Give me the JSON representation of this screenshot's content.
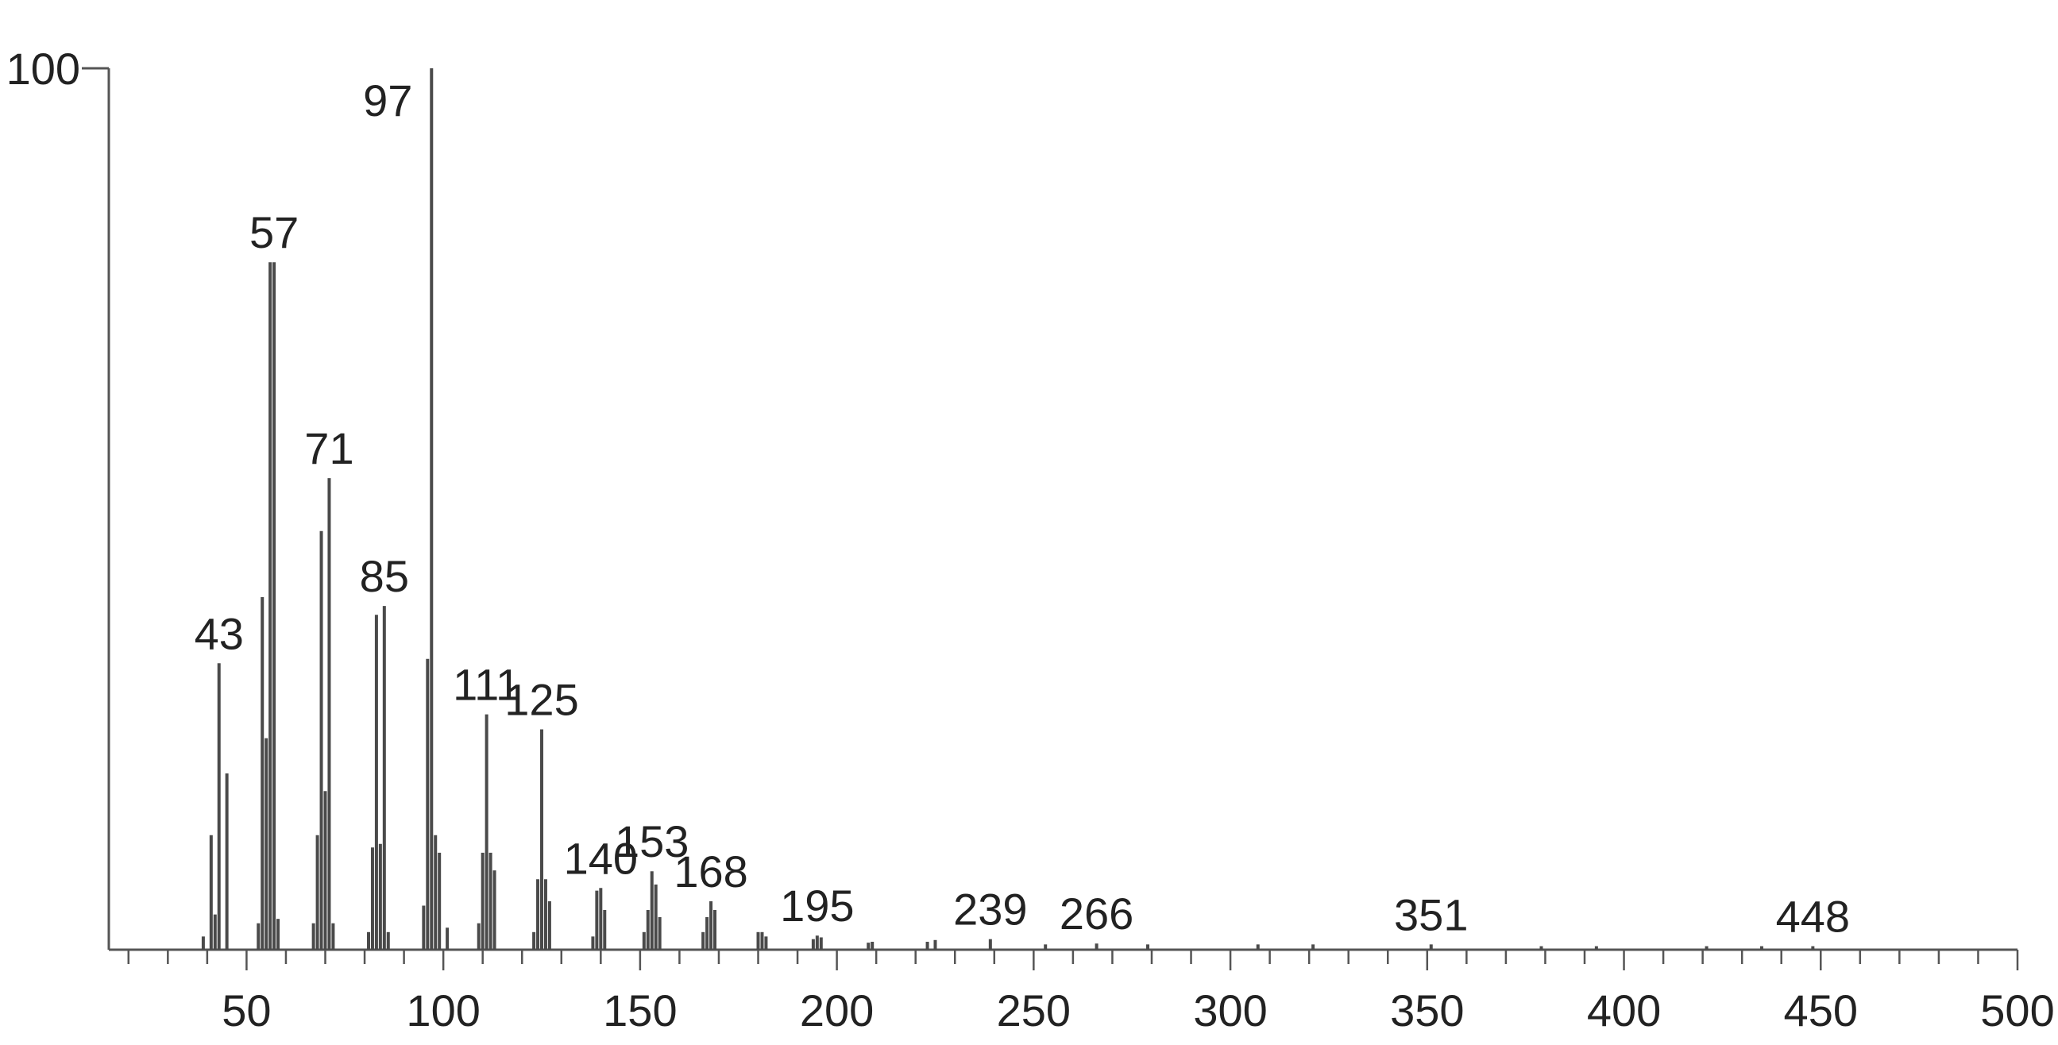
{
  "chart_data": {
    "type": "stick",
    "color": "#4a4a4a",
    "xlim": [
      15,
      500
    ],
    "xticks": [
      50,
      100,
      150,
      200,
      250,
      300,
      350,
      400,
      450,
      500
    ],
    "xminorticks": [
      20,
      30,
      40,
      60,
      70,
      80,
      90,
      110,
      120,
      130,
      140,
      160,
      170,
      180,
      190,
      210,
      220,
      230,
      240,
      260,
      270,
      280,
      290,
      310,
      320,
      330,
      340,
      360,
      370,
      380,
      390,
      410,
      420,
      430,
      440,
      460,
      470,
      480,
      490
    ],
    "ylim": [
      0,
      100
    ],
    "yticks": [
      100
    ],
    "x": [
      39,
      41,
      42,
      43,
      45,
      53,
      54,
      55,
      56,
      57,
      58,
      67,
      68,
      69,
      70,
      71,
      72,
      81,
      82,
      83,
      84,
      85,
      86,
      95,
      96,
      97,
      98,
      99,
      101,
      109,
      110,
      111,
      112,
      113,
      123,
      124,
      125,
      126,
      127,
      138,
      139,
      140,
      141,
      151,
      152,
      153,
      154,
      155,
      166,
      167,
      168,
      169,
      180,
      181,
      182,
      194,
      195,
      196,
      208,
      209,
      223,
      225,
      239,
      253,
      266,
      279,
      307,
      321,
      351,
      379,
      393,
      421,
      435,
      448
    ],
    "values": [
      1.5,
      13,
      4,
      32.5,
      20,
      3,
      40,
      24,
      78,
      78,
      3.5,
      3,
      13,
      47.5,
      18,
      53.5,
      3,
      2,
      11.6,
      38,
      12,
      39,
      2,
      5,
      33,
      100,
      13,
      11,
      2.5,
      3,
      11,
      26.7,
      11,
      9,
      2,
      8,
      25,
      8,
      5.5,
      1.5,
      6.7,
      7,
      4.5,
      2,
      4.5,
      8.9,
      7.4,
      3.7,
      2,
      3.7,
      5.5,
      4.5,
      2,
      2,
      1.5,
      1.2,
      1.6,
      1.4,
      0.8,
      0.9,
      0.9,
      1.1,
      1.2,
      0.6,
      0.7,
      0.6,
      0.6,
      0.6,
      0.6,
      0.4,
      0.4,
      0.4,
      0.4,
      0.4
    ],
    "annotations": [
      43,
      57,
      71,
      85,
      97,
      111,
      125,
      140,
      153,
      168,
      195,
      239,
      266,
      351,
      448
    ]
  }
}
